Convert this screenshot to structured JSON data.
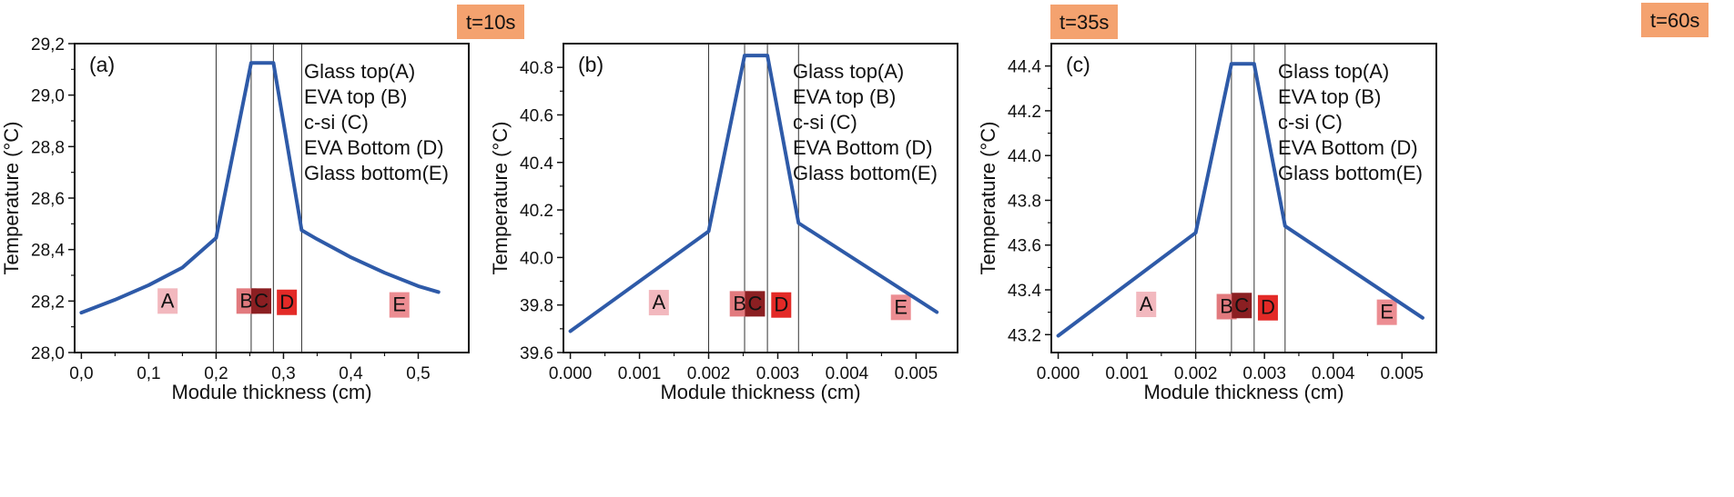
{
  "colors": {
    "curve": "#2e5aa8",
    "badge": "#f4a26f",
    "region_A": "#f2b8be",
    "region_B": "#e27a7e",
    "region_C": "#8b1f22",
    "region_D": "#e32a27",
    "region_E": "#ec8d92"
  },
  "chart_data": [
    {
      "type": "line",
      "panel_label": "(a)",
      "time_label": "t=10s",
      "xlabel": "Module thickness (cm)",
      "ylabel": "Temperature (°C)",
      "xlim": [
        -0.01,
        0.575
      ],
      "ylim": [
        28.0,
        29.2
      ],
      "xticks": [
        0.0,
        0.1,
        0.2,
        0.3,
        0.4,
        0.5
      ],
      "xtick_labels": [
        "0,0",
        "0,1",
        "0,2",
        "0,3",
        "0,4",
        "0,5"
      ],
      "yticks": [
        28.0,
        28.2,
        28.4,
        28.6,
        28.8,
        29.0,
        29.2
      ],
      "ytick_labels": [
        "28,0",
        "28,2",
        "28,4",
        "28,6",
        "28,8",
        "29,0",
        "29,2"
      ],
      "boundaries": [
        0.2,
        0.252,
        0.285,
        0.327
      ],
      "x": [
        0.0,
        0.05,
        0.1,
        0.15,
        0.2,
        0.252,
        0.285,
        0.327,
        0.35,
        0.4,
        0.45,
        0.5,
        0.53
      ],
      "y": [
        28.155,
        28.205,
        28.262,
        28.33,
        28.445,
        29.125,
        29.125,
        28.475,
        28.44,
        28.37,
        28.31,
        28.258,
        28.235
      ],
      "regions": [
        {
          "label": "A",
          "x": 0.128,
          "y": 28.2
        },
        {
          "label": "B",
          "x": 0.245,
          "y": 28.2
        },
        {
          "label": "C",
          "x": 0.267,
          "y": 28.2
        },
        {
          "label": "D",
          "x": 0.305,
          "y": 28.195
        },
        {
          "label": "E",
          "x": 0.472,
          "y": 28.185
        }
      ],
      "legend": [
        "Glass top(A)",
        "EVA top (B)",
        "c-si (C)",
        "EVA Bottom (D)",
        "Glass bottom(E)"
      ]
    },
    {
      "type": "line",
      "panel_label": "(b)",
      "time_label": "t=35s",
      "xlabel": "Module thickness (cm)",
      "ylabel": "Temperature (°C)",
      "xlim": [
        -0.0001,
        0.0056
      ],
      "ylim": [
        39.6,
        40.9
      ],
      "xticks": [
        0.0,
        0.001,
        0.002,
        0.003,
        0.004,
        0.005
      ],
      "xtick_labels": [
        "0.000",
        "0.001",
        "0.002",
        "0.003",
        "0.004",
        "0.005"
      ],
      "yticks": [
        39.6,
        39.8,
        40.0,
        40.2,
        40.4,
        40.6,
        40.8
      ],
      "ytick_labels": [
        "39.6",
        "39.8",
        "40.0",
        "40.2",
        "40.4",
        "40.6",
        "40.8"
      ],
      "boundaries": [
        0.002,
        0.00252,
        0.00285,
        0.0033
      ],
      "x": [
        0.0,
        0.002,
        0.00252,
        0.00285,
        0.0033,
        0.0053
      ],
      "y": [
        39.69,
        40.11,
        40.85,
        40.85,
        40.145,
        39.77
      ],
      "regions": [
        {
          "label": "A",
          "x": 0.00128,
          "y": 39.81
        },
        {
          "label": "B",
          "x": 0.00245,
          "y": 39.805
        },
        {
          "label": "C",
          "x": 0.00267,
          "y": 39.805
        },
        {
          "label": "D",
          "x": 0.00305,
          "y": 39.8
        },
        {
          "label": "E",
          "x": 0.00478,
          "y": 39.79
        }
      ],
      "legend": [
        "Glass top(A)",
        "EVA top (B)",
        "c-si (C)",
        "EVA Bottom (D)",
        "Glass bottom(E)"
      ]
    },
    {
      "type": "line",
      "panel_label": "(c)",
      "time_label": "t=60s",
      "xlabel": "Module thickness (cm)",
      "ylabel": "Temperature (°C)",
      "xlim": [
        -0.0001,
        0.0055
      ],
      "ylim": [
        43.12,
        44.5
      ],
      "xticks": [
        0.0,
        0.001,
        0.002,
        0.003,
        0.004,
        0.005
      ],
      "xtick_labels": [
        "0.000",
        "0.001",
        "0.002",
        "0.003",
        "0.004",
        "0.005"
      ],
      "yticks": [
        43.2,
        43.4,
        43.6,
        43.8,
        44.0,
        44.2,
        44.4
      ],
      "ytick_labels": [
        "43.2",
        "43.4",
        "43.6",
        "43.8",
        "44.0",
        "44.2",
        "44.4"
      ],
      "boundaries": [
        0.002,
        0.00252,
        0.00285,
        0.0033
      ],
      "x": [
        0.0,
        0.002,
        0.00252,
        0.00285,
        0.0033,
        0.0053
      ],
      "y": [
        43.195,
        43.655,
        44.41,
        44.41,
        43.685,
        43.275
      ],
      "regions": [
        {
          "label": "A",
          "x": 0.00128,
          "y": 43.335
        },
        {
          "label": "B",
          "x": 0.00245,
          "y": 43.325
        },
        {
          "label": "C",
          "x": 0.00267,
          "y": 43.33
        },
        {
          "label": "D",
          "x": 0.00305,
          "y": 43.32
        },
        {
          "label": "E",
          "x": 0.00478,
          "y": 43.3
        }
      ],
      "legend": [
        "Glass top(A)",
        "EVA top (B)",
        "c-si (C)",
        "EVA Bottom (D)",
        "Glass bottom(E)"
      ]
    }
  ]
}
